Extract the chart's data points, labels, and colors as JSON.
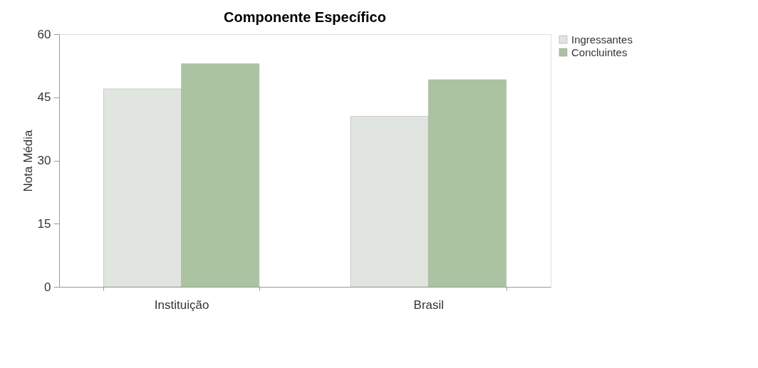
{
  "chart_data": {
    "type": "bar",
    "title": "Componente Específico",
    "ylabel": "Nota Média",
    "categories": [
      "Instituição",
      "Brasil"
    ],
    "series": [
      {
        "name": "Ingressantes",
        "color": "#e1e5df",
        "values": [
          47.0,
          40.5
        ]
      },
      {
        "name": "Concluintes",
        "color": "#abc3a0",
        "values": [
          53.0,
          49.2
        ]
      }
    ],
    "ylim": [
      0,
      60
    ],
    "yticks": [
      0,
      15,
      30,
      45,
      60
    ],
    "grid": false,
    "legend": "right"
  }
}
